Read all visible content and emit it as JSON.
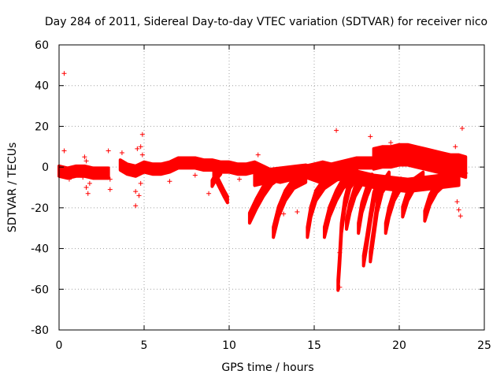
{
  "chart_data": {
    "type": "scatter",
    "title": "Day 284 of 2011, Sidereal Day-to-day VTEC variation (SDTVAR) for receiver nico",
    "xlabel": "GPS time / hours",
    "ylabel": "SDTVAR / TECUs",
    "xlim": [
      0,
      25
    ],
    "ylim": [
      -80,
      60
    ],
    "xticks": [
      0,
      5,
      10,
      15,
      20,
      25
    ],
    "yticks": [
      -80,
      -60,
      -40,
      -20,
      0,
      20,
      40,
      60
    ],
    "xtick_labels": [
      "0",
      "5",
      "10",
      "15",
      "20",
      "25"
    ],
    "ytick_labels": [
      "-80",
      "-60",
      "-40",
      "-20",
      "0",
      "20",
      "40",
      "60"
    ],
    "grid": true,
    "marker": "+",
    "series_color": "#ff0000",
    "dense_bands": [
      {
        "name": "band-1",
        "points": [
          [
            0,
            -2
          ],
          [
            0.5,
            -3
          ],
          [
            1,
            -2
          ],
          [
            1.5,
            -2
          ],
          [
            2,
            -3
          ],
          [
            2.5,
            -3
          ],
          [
            2.9,
            -3
          ]
        ],
        "spread": 2.5
      },
      {
        "name": "band-2",
        "points": [
          [
            3.6,
            1
          ],
          [
            4,
            -1
          ],
          [
            4.5,
            -2
          ],
          [
            5,
            0
          ],
          [
            5.5,
            -1
          ],
          [
            6,
            -1
          ],
          [
            6.5,
            0
          ],
          [
            7,
            2
          ],
          [
            7.5,
            2
          ],
          [
            8,
            2
          ],
          [
            8.5,
            1
          ],
          [
            9,
            1
          ],
          [
            9.5,
            0
          ],
          [
            10,
            0
          ],
          [
            10.5,
            -1
          ],
          [
            11,
            -1
          ],
          [
            11.5,
            0
          ],
          [
            12,
            -2
          ],
          [
            12.5,
            -4
          ],
          [
            13,
            -5
          ],
          [
            13.5,
            -4
          ],
          [
            14,
            -3
          ],
          [
            14.5,
            -2
          ],
          [
            15,
            -1
          ],
          [
            15.5,
            0
          ],
          [
            16,
            -1
          ],
          [
            16.5,
            0
          ],
          [
            17,
            1
          ],
          [
            17.5,
            2
          ],
          [
            18,
            2
          ],
          [
            18.5,
            2
          ]
        ],
        "spread": 2.5
      },
      {
        "name": "band-3",
        "points": [
          [
            18.5,
            4
          ],
          [
            19,
            5
          ],
          [
            19.5,
            5
          ],
          [
            20,
            6
          ],
          [
            20.5,
            6
          ],
          [
            21,
            5
          ],
          [
            21.5,
            4
          ],
          [
            22,
            3
          ],
          [
            22.5,
            2
          ],
          [
            23,
            1
          ],
          [
            23.5,
            1
          ],
          [
            23.9,
            0
          ]
        ],
        "spread": 5
      },
      {
        "name": "band-4",
        "points": [
          [
            11.5,
            -6
          ],
          [
            12.5,
            -4
          ],
          [
            13.5,
            -3
          ],
          [
            14.5,
            -2
          ],
          [
            15.5,
            -5
          ],
          [
            16.5,
            -3
          ],
          [
            17.5,
            -5
          ],
          [
            18.5,
            -7
          ],
          [
            19.5,
            -8
          ],
          [
            20.5,
            -9
          ],
          [
            21.5,
            -8
          ],
          [
            22.5,
            -7
          ],
          [
            23.5,
            -6
          ]
        ],
        "spread": 3
      },
      {
        "name": "band-5",
        "points": [
          [
            11.2,
            -25
          ],
          [
            11.6,
            -18
          ],
          [
            12,
            -12
          ],
          [
            12.5,
            -6
          ],
          [
            13,
            -3
          ]
        ],
        "spread": 2.5
      },
      {
        "name": "band-6",
        "points": [
          [
            12.6,
            -32
          ],
          [
            12.9,
            -22
          ],
          [
            13.3,
            -14
          ],
          [
            13.8,
            -8
          ],
          [
            14.5,
            -5
          ]
        ],
        "spread": 2.5
      },
      {
        "name": "band-7",
        "points": [
          [
            14.6,
            -32
          ],
          [
            14.8,
            -22
          ],
          [
            15.1,
            -14
          ],
          [
            15.6,
            -8
          ],
          [
            16.3,
            -4
          ]
        ],
        "spread": 2.5
      },
      {
        "name": "band-8",
        "points": [
          [
            15.6,
            -32
          ],
          [
            15.9,
            -22
          ],
          [
            16.3,
            -14
          ],
          [
            16.7,
            -8
          ],
          [
            17.2,
            -4
          ]
        ],
        "spread": 2.5
      },
      {
        "name": "band-9",
        "points": [
          [
            16.4,
            -58
          ],
          [
            16.5,
            -45
          ],
          [
            16.6,
            -30
          ],
          [
            16.8,
            -18
          ],
          [
            17.1,
            -8
          ],
          [
            17.5,
            -3
          ]
        ],
        "spread": 2.5
      },
      {
        "name": "band-10",
        "points": [
          [
            16.9,
            -28
          ],
          [
            17.1,
            -20
          ],
          [
            17.4,
            -12
          ],
          [
            17.8,
            -6
          ]
        ],
        "spread": 2.5
      },
      {
        "name": "band-11",
        "points": [
          [
            17.6,
            -30
          ],
          [
            17.8,
            -20
          ],
          [
            18.1,
            -12
          ],
          [
            18.4,
            -6
          ]
        ],
        "spread": 2.5
      },
      {
        "name": "band-12",
        "points": [
          [
            17.9,
            -46
          ],
          [
            18.1,
            -36
          ],
          [
            18.3,
            -25
          ],
          [
            18.5,
            -15
          ],
          [
            18.8,
            -8
          ]
        ],
        "spread": 2.5
      },
      {
        "name": "band-13",
        "points": [
          [
            18.3,
            -44
          ],
          [
            18.5,
            -32
          ],
          [
            18.7,
            -20
          ],
          [
            19,
            -10
          ],
          [
            19.4,
            -5
          ]
        ],
        "spread": 2.5
      },
      {
        "name": "band-14",
        "points": [
          [
            19.2,
            -30
          ],
          [
            19.4,
            -22
          ],
          [
            19.7,
            -14
          ],
          [
            20.1,
            -8
          ]
        ],
        "spread": 2.5
      },
      {
        "name": "band-15",
        "points": [
          [
            20.2,
            -22
          ],
          [
            20.5,
            -14
          ],
          [
            20.9,
            -8
          ],
          [
            21.4,
            -5
          ]
        ],
        "spread": 2.5
      },
      {
        "name": "band-16",
        "points": [
          [
            21.5,
            -24
          ],
          [
            21.8,
            -16
          ],
          [
            22.2,
            -10
          ],
          [
            22.7,
            -6
          ]
        ],
        "spread": 2.5
      },
      {
        "name": "band-17",
        "points": [
          [
            9.1,
            -3
          ],
          [
            9.4,
            -8
          ],
          [
            9.7,
            -13
          ],
          [
            9.9,
            -16
          ]
        ],
        "spread": 1.5
      },
      {
        "name": "band-18",
        "points": [
          [
            9.0,
            -8
          ],
          [
            9.2,
            -5
          ],
          [
            9.5,
            -2
          ]
        ],
        "spread": 1.5
      }
    ],
    "scatter_points": [
      [
        0.3,
        46
      ],
      [
        0.3,
        8
      ],
      [
        0.1,
        -4
      ],
      [
        0.6,
        -6
      ],
      [
        1.4,
        -5
      ],
      [
        1.5,
        5
      ],
      [
        1.6,
        3
      ],
      [
        1.6,
        -10
      ],
      [
        1.7,
        -13
      ],
      [
        1.8,
        -8
      ],
      [
        2.9,
        8
      ],
      [
        3.0,
        -6
      ],
      [
        3.0,
        -11
      ],
      [
        3.7,
        7
      ],
      [
        4.5,
        -19
      ],
      [
        4.5,
        -12
      ],
      [
        4.7,
        -14
      ],
      [
        4.6,
        9
      ],
      [
        4.8,
        10
      ],
      [
        4.9,
        6
      ],
      [
        4.9,
        16
      ],
      [
        4.8,
        -8
      ],
      [
        6.5,
        -7
      ],
      [
        8.0,
        -4
      ],
      [
        8.8,
        -13
      ],
      [
        10.6,
        -6
      ],
      [
        11.7,
        6
      ],
      [
        13.2,
        -23
      ],
      [
        13.6,
        -2
      ],
      [
        14.0,
        -22
      ],
      [
        16.3,
        18
      ],
      [
        16.5,
        -59
      ],
      [
        16.5,
        -42
      ],
      [
        18.3,
        15
      ],
      [
        19.0,
        9
      ],
      [
        19.5,
        12
      ],
      [
        20.1,
        10
      ],
      [
        22.5,
        -5
      ],
      [
        23.3,
        10
      ],
      [
        23.4,
        -17
      ],
      [
        23.5,
        -21
      ],
      [
        23.6,
        -24
      ],
      [
        23.7,
        19
      ],
      [
        23.9,
        -3
      ]
    ]
  }
}
